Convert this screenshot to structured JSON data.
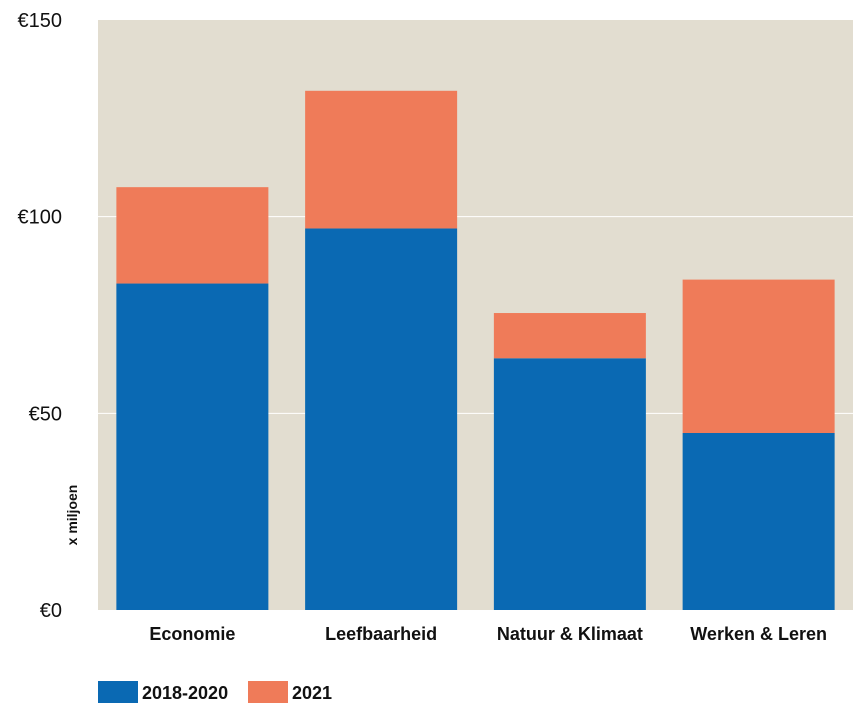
{
  "chart_data": {
    "type": "bar",
    "stacked": true,
    "categories": [
      "Economie",
      "Leefbaarheid",
      "Natuur & Klimaat",
      "Werken & Leren"
    ],
    "series": [
      {
        "name": "2018-2020",
        "values": [
          83,
          97,
          64,
          45
        ],
        "color": "#0a69b3"
      },
      {
        "name": "2021",
        "values": [
          24.5,
          35,
          11.5,
          39
        ],
        "color": "#ef7b59"
      }
    ],
    "yticks": [
      "€0",
      "€50",
      "€100",
      "€150"
    ],
    "ytick_values": [
      0,
      50,
      100,
      150
    ],
    "ylim": [
      0,
      150
    ],
    "ylabel": "x miljoen",
    "xlabel": "",
    "title": "",
    "grid": true,
    "legend_position": "bottom-left",
    "plot_background": "#e2ddd0",
    "grid_color": "#ffffff"
  }
}
